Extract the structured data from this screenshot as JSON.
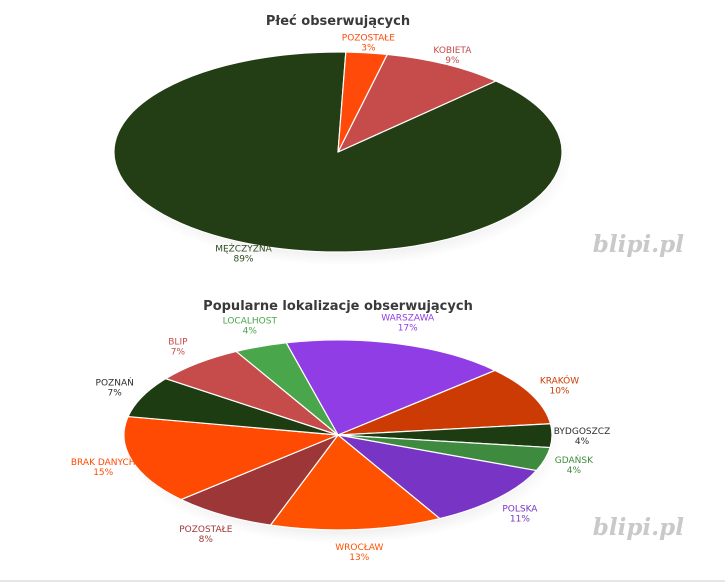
{
  "chart_data": [
    {
      "type": "pie",
      "title": "Płeć obserwujących",
      "watermark": "blipi.pl",
      "slices": [
        {
          "label": "MĘŻCZYZNA",
          "value": 89,
          "pct_label": "89%",
          "color": "#233d14",
          "label_color": "#2f4a1e"
        },
        {
          "label": "KOBIETA",
          "value": 9,
          "pct_label": "9%",
          "color": "#c64b4b",
          "label_color": "#c64b4b"
        },
        {
          "label": "POZOSTAŁE",
          "value": 3,
          "pct_label": "3%",
          "color": "#ff4a0a",
          "label_color": "#ff4a0a"
        }
      ]
    },
    {
      "type": "pie",
      "title": "Popularne lokalizacje obserwujących",
      "watermark": "blipi.pl",
      "slices": [
        {
          "label": "WARSZAWA",
          "value": 17,
          "pct_label": "17%",
          "color": "#903de5",
          "label_color": "#903de5"
        },
        {
          "label": "KRAKÓW",
          "value": 10,
          "pct_label": "10%",
          "color": "#cd3b04",
          "label_color": "#cd3b04"
        },
        {
          "label": "BYDGOSZCZ",
          "value": 4,
          "pct_label": "4%",
          "color": "#1e3c12",
          "label_color": "#2c2c2c"
        },
        {
          "label": "GDAŃSK",
          "value": 4,
          "pct_label": "4%",
          "color": "#3e8a3e",
          "label_color": "#3e8a3e"
        },
        {
          "label": "POLSKA",
          "value": 11,
          "pct_label": "11%",
          "color": "#7834c4",
          "label_color": "#7834c4"
        },
        {
          "label": "WROCŁAW",
          "value": 13,
          "pct_label": "13%",
          "color": "#ff5200",
          "label_color": "#ff5200"
        },
        {
          "label": "POZOSTAŁE",
          "value": 8,
          "pct_label": "8%",
          "color": "#9d3636",
          "label_color": "#9d3636"
        },
        {
          "label": "BRAK DANYCH",
          "value": 15,
          "pct_label": "15%",
          "color": "#ff4a04",
          "label_color": "#ff4a04"
        },
        {
          "label": "POZNAŃ",
          "value": 7,
          "pct_label": "7%",
          "color": "#1e3c12",
          "label_color": "#2c2c2c"
        },
        {
          "label": "BLIP",
          "value": 7,
          "pct_label": "7%",
          "color": "#c64b4b",
          "label_color": "#c64b4b"
        },
        {
          "label": "LOCALHOST",
          "value": 4,
          "pct_label": "4%",
          "color": "#4aa64a",
          "label_color": "#4aa64a"
        }
      ]
    }
  ]
}
